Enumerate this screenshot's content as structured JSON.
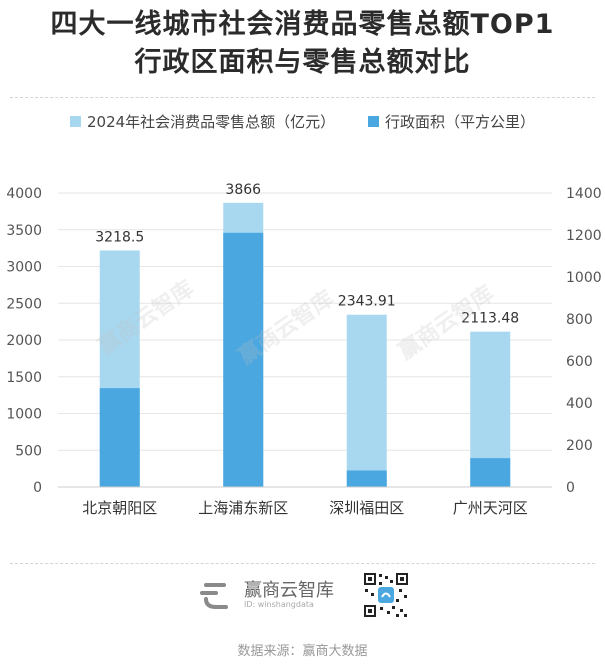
{
  "title_line1": "四大一线城市社会消费品零售总额TOP1",
  "title_line2": "行政区面积与零售总额对比",
  "legend": [
    {
      "label": "2024年社会消费品零售总额（亿元）",
      "color": "#a8d8f0"
    },
    {
      "label": "行政面积（平方公里）",
      "color": "#4aa7e0"
    }
  ],
  "chart_data": {
    "type": "bar",
    "categories": [
      "北京朝阳区",
      "上海浦东新区",
      "深圳福田区",
      "广州天河区"
    ],
    "series": [
      {
        "name": "2024年社会消费品零售总额（亿元）",
        "axis": "left",
        "values": [
          3218.5,
          3866,
          2343.91,
          2113.48
        ],
        "color": "#a8d8f0"
      },
      {
        "name": "行政面积（平方公里）",
        "axis": "right",
        "values": [
          470.8,
          1210.4,
          78.66,
          137.38
        ],
        "color": "#4aa7e0"
      }
    ],
    "data_labels": [
      "3218.5",
      "3866",
      "2343.91",
      "2113.48"
    ],
    "ylim_left": [
      0,
      4000
    ],
    "yticks_left": [
      "0",
      "500",
      "1000",
      "1500",
      "2000",
      "2500",
      "3000",
      "3500",
      "4000"
    ],
    "ylim_right": [
      0,
      1400
    ],
    "yticks_right": [
      "0",
      "200",
      "400",
      "600",
      "800",
      "1000",
      "1200",
      "1400"
    ],
    "grid": true,
    "legend_position": "top"
  },
  "watermark": "赢商云智库",
  "footer": {
    "logo_text": "赢商云智库",
    "logo_id": "ID: winshangdata",
    "source": "数据来源：赢商大数据"
  }
}
